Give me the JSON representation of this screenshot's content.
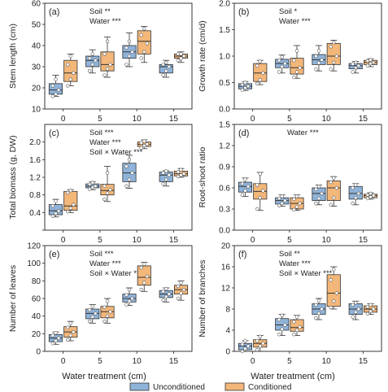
{
  "figure": {
    "xlabel": "Water treatment (cm)",
    "legend": [
      {
        "label": "Unconditioned",
        "color": "#8fb3d9"
      },
      {
        "label": "Conditioned",
        "color": "#f3b77a"
      }
    ]
  },
  "chart_data": [
    {
      "type": "box",
      "panel_label": "(a)",
      "ylabel": "Stem length (cm)",
      "ylim": [
        10,
        60
      ],
      "yticks": [
        10,
        20,
        30,
        40,
        50,
        60
      ],
      "categories": [
        "0",
        "5",
        "10",
        "15"
      ],
      "annotations": [
        "Soil **",
        "Water ***"
      ],
      "series": [
        {
          "name": "Unconditioned",
          "color": "#8fb3d9",
          "boxes": [
            {
              "min": 16,
              "q1": 17,
              "median": 19,
              "q3": 22,
              "max": 26,
              "points": [
                16,
                17,
                19,
                21,
                24
              ]
            },
            {
              "min": 27,
              "q1": 30,
              "median": 33,
              "q3": 35,
              "max": 38,
              "points": [
                28,
                31,
                33,
                34,
                36
              ]
            },
            {
              "min": 30,
              "q1": 34,
              "median": 37,
              "q3": 40,
              "max": 46,
              "points": [
                31,
                35,
                37,
                39,
                42
              ]
            },
            {
              "min": 25,
              "q1": 27,
              "median": 30,
              "q3": 31,
              "max": 33,
              "points": [
                26,
                28,
                30,
                31,
                32
              ]
            }
          ]
        },
        {
          "name": "Conditioned",
          "color": "#f3b77a",
          "boxes": [
            {
              "min": 21,
              "q1": 23,
              "median": 27,
              "q3": 33,
              "max": 36,
              "points": [
                21,
                24,
                27,
                31,
                35
              ]
            },
            {
              "min": 25,
              "q1": 28,
              "median": 31,
              "q3": 37,
              "max": 44,
              "points": [
                26,
                29,
                31,
                36,
                42
              ]
            },
            {
              "min": 32,
              "q1": 36,
              "median": 42,
              "q3": 47,
              "max": 49,
              "points": [
                34,
                37,
                41,
                45,
                48
              ]
            },
            {
              "min": 32,
              "q1": 34,
              "median": 35,
              "q3": 36,
              "max": 37,
              "points": [
                33,
                34,
                35,
                36,
                36
              ]
            }
          ]
        }
      ]
    },
    {
      "type": "box",
      "panel_label": "(b)",
      "ylabel": "Growth rate (cm/d)",
      "ylim": [
        0,
        2.0
      ],
      "yticks": [
        0.0,
        0.5,
        1.0,
        1.5,
        2.0
      ],
      "ytick_labels": [
        "0.0",
        "0.5",
        "1.0",
        "1.5",
        "2.0"
      ],
      "categories": [
        "0",
        "5",
        "10",
        "15"
      ],
      "annotations": [
        "Soil *",
        "Water ***"
      ],
      "series": [
        {
          "name": "Unconditioned",
          "color": "#8fb3d9",
          "boxes": [
            {
              "min": 0.35,
              "q1": 0.38,
              "median": 0.43,
              "q3": 0.48,
              "max": 0.52,
              "points": [
                0.36,
                0.4,
                0.43,
                0.46,
                0.5
              ]
            },
            {
              "min": 0.68,
              "q1": 0.78,
              "median": 0.86,
              "q3": 0.94,
              "max": 1.02,
              "points": [
                0.7,
                0.8,
                0.86,
                0.92,
                0.98
              ]
            },
            {
              "min": 0.72,
              "q1": 0.84,
              "median": 0.93,
              "q3": 1.03,
              "max": 1.2,
              "points": [
                0.75,
                0.87,
                0.93,
                1.0,
                1.1
              ]
            },
            {
              "min": 0.68,
              "q1": 0.76,
              "median": 0.82,
              "q3": 0.86,
              "max": 0.9,
              "points": [
                0.7,
                0.78,
                0.82,
                0.85,
                0.88
              ]
            }
          ]
        },
        {
          "name": "Conditioned",
          "color": "#f3b77a",
          "boxes": [
            {
              "min": 0.46,
              "q1": 0.52,
              "median": 0.68,
              "q3": 0.86,
              "max": 0.92,
              "points": [
                0.48,
                0.55,
                0.68,
                0.82,
                0.9
              ]
            },
            {
              "min": 0.58,
              "q1": 0.66,
              "median": 0.78,
              "q3": 0.96,
              "max": 1.2,
              "points": [
                0.6,
                0.7,
                0.78,
                0.92,
                1.1
              ]
            },
            {
              "min": 0.72,
              "q1": 0.84,
              "median": 1.0,
              "q3": 1.24,
              "max": 1.3,
              "points": [
                0.75,
                0.88,
                1.0,
                1.18,
                1.26
              ]
            },
            {
              "min": 0.8,
              "q1": 0.84,
              "median": 0.88,
              "q3": 0.92,
              "max": 0.95,
              "points": [
                0.82,
                0.86,
                0.88,
                0.91,
                0.93
              ]
            }
          ]
        }
      ]
    },
    {
      "type": "box",
      "panel_label": "(c)",
      "ylabel": "Total biomass (g, DW)",
      "ylim": [
        0,
        2.4
      ],
      "yticks": [
        0.0,
        0.4,
        0.8,
        1.2,
        1.6,
        2.0
      ],
      "ytick_labels": [
        "",
        "0.4",
        "0.8",
        "1.2",
        "1.6",
        "2.0"
      ],
      "categories": [
        "0",
        "5",
        "10",
        "15"
      ],
      "annotations": [
        "Soil ***",
        "Water ***",
        "Soil × Water ***"
      ],
      "series": [
        {
          "name": "Unconditioned",
          "color": "#8fb3d9",
          "boxes": [
            {
              "min": 0.3,
              "q1": 0.35,
              "median": 0.44,
              "q3": 0.58,
              "max": 0.7,
              "points": [
                0.32,
                0.38,
                0.44,
                0.55,
                0.66
              ]
            },
            {
              "min": 0.92,
              "q1": 0.96,
              "median": 1.0,
              "q3": 1.05,
              "max": 1.1,
              "points": [
                0.93,
                0.97,
                1.0,
                1.04,
                1.08
              ]
            },
            {
              "min": 0.95,
              "q1": 1.1,
              "median": 1.3,
              "q3": 1.52,
              "max": 1.7,
              "points": [
                1.0,
                1.15,
                1.3,
                1.45,
                1.6
              ]
            },
            {
              "min": 1.0,
              "q1": 1.1,
              "median": 1.25,
              "q3": 1.32,
              "max": 1.35,
              "points": [
                1.05,
                1.15,
                1.25,
                1.3,
                1.34
              ]
            }
          ]
        },
        {
          "name": "Conditioned",
          "color": "#f3b77a",
          "boxes": [
            {
              "min": 0.4,
              "q1": 0.45,
              "median": 0.55,
              "q3": 0.88,
              "max": 0.92,
              "points": [
                0.42,
                0.5,
                0.58,
                0.85,
                0.9
              ]
            },
            {
              "min": 0.65,
              "q1": 0.8,
              "median": 0.9,
              "q3": 1.04,
              "max": 1.45,
              "points": [
                0.7,
                0.84,
                0.92,
                1.0,
                1.3
              ]
            },
            {
              "min": 1.85,
              "q1": 1.9,
              "median": 1.95,
              "q3": 2.0,
              "max": 2.05,
              "points": [
                1.87,
                1.92,
                1.95,
                1.98,
                2.02
              ]
            },
            {
              "min": 1.2,
              "q1": 1.23,
              "median": 1.28,
              "q3": 1.34,
              "max": 1.4,
              "points": [
                1.22,
                1.25,
                1.28,
                1.32,
                1.37
              ]
            }
          ]
        }
      ]
    },
    {
      "type": "box",
      "panel_label": "(d)",
      "ylabel": "Root-shoot ratio",
      "ylim": [
        0,
        1.5
      ],
      "yticks": [
        0.0,
        0.3,
        0.6,
        0.9,
        1.2,
        1.5
      ],
      "ytick_labels": [
        "0.0",
        "0.3",
        "0.6",
        "0.9",
        "1.2",
        "1.5"
      ],
      "categories": [
        "0",
        "5",
        "10",
        "15"
      ],
      "annotations": [
        "Water ***"
      ],
      "series": [
        {
          "name": "Unconditioned",
          "color": "#8fb3d9",
          "boxes": [
            {
              "min": 0.48,
              "q1": 0.54,
              "median": 0.62,
              "q3": 0.68,
              "max": 0.74,
              "points": [
                0.5,
                0.56,
                0.62,
                0.66,
                0.72
              ]
            },
            {
              "min": 0.34,
              "q1": 0.37,
              "median": 0.42,
              "q3": 0.46,
              "max": 0.5,
              "points": [
                0.35,
                0.38,
                0.42,
                0.45,
                0.48
              ]
            },
            {
              "min": 0.36,
              "q1": 0.42,
              "median": 0.52,
              "q3": 0.6,
              "max": 0.64,
              "points": [
                0.38,
                0.45,
                0.52,
                0.58,
                0.62
              ]
            },
            {
              "min": 0.36,
              "q1": 0.44,
              "median": 0.52,
              "q3": 0.62,
              "max": 0.66,
              "points": [
                0.38,
                0.46,
                0.52,
                0.6,
                0.64
              ]
            }
          ]
        },
        {
          "name": "Conditioned",
          "color": "#f3b77a",
          "boxes": [
            {
              "min": 0.28,
              "q1": 0.44,
              "median": 0.55,
              "q3": 0.66,
              "max": 0.82,
              "points": [
                0.3,
                0.46,
                0.56,
                0.64,
                0.8
              ]
            },
            {
              "min": 0.28,
              "q1": 0.3,
              "median": 0.38,
              "q3": 0.46,
              "max": 0.5,
              "points": [
                0.29,
                0.33,
                0.38,
                0.44,
                0.48
              ]
            },
            {
              "min": 0.34,
              "q1": 0.42,
              "median": 0.6,
              "q3": 0.7,
              "max": 0.76,
              "points": [
                0.36,
                0.46,
                0.6,
                0.68,
                0.74
              ]
            },
            {
              "min": 0.44,
              "q1": 0.46,
              "median": 0.49,
              "q3": 0.51,
              "max": 0.53,
              "points": [
                0.45,
                0.47,
                0.49,
                0.5,
                0.52
              ]
            }
          ]
        }
      ]
    },
    {
      "type": "box",
      "panel_label": "(e)",
      "ylabel": "Number of leaves",
      "ylim": [
        0,
        120
      ],
      "yticks": [
        0,
        20,
        40,
        60,
        80,
        100,
        120
      ],
      "categories": [
        "0",
        "5",
        "10",
        "15"
      ],
      "annotations": [
        "Soil ***",
        "Water ***",
        "Soil × Water ***"
      ],
      "series": [
        {
          "name": "Unconditioned",
          "color": "#8fb3d9",
          "boxes": [
            {
              "min": 8,
              "q1": 11,
              "median": 15,
              "q3": 19,
              "max": 22,
              "points": [
                9,
                12,
                15,
                18,
                21
              ]
            },
            {
              "min": 32,
              "q1": 37,
              "median": 43,
              "q3": 48,
              "max": 53,
              "points": [
                34,
                39,
                43,
                47,
                51
              ]
            },
            {
              "min": 52,
              "q1": 56,
              "median": 60,
              "q3": 65,
              "max": 72,
              "points": [
                53,
                57,
                60,
                64,
                70
              ]
            },
            {
              "min": 56,
              "q1": 61,
              "median": 65,
              "q3": 69,
              "max": 72,
              "points": [
                58,
                62,
                65,
                68,
                71
              ]
            }
          ]
        },
        {
          "name": "Conditioned",
          "color": "#f3b77a",
          "boxes": [
            {
              "min": 12,
              "q1": 16,
              "median": 22,
              "q3": 28,
              "max": 34,
              "points": [
                13,
                18,
                22,
                27,
                32
              ]
            },
            {
              "min": 32,
              "q1": 38,
              "median": 45,
              "q3": 51,
              "max": 60,
              "points": [
                34,
                40,
                45,
                50,
                57
              ]
            },
            {
              "min": 68,
              "q1": 75,
              "median": 84,
              "q3": 97,
              "max": 101,
              "points": [
                70,
                78,
                85,
                95,
                99
              ]
            },
            {
              "min": 58,
              "q1": 65,
              "median": 70,
              "q3": 75,
              "max": 80,
              "points": [
                60,
                66,
                70,
                74,
                78
              ]
            }
          ]
        }
      ]
    },
    {
      "type": "box",
      "panel_label": "(f)",
      "ylabel": "Number of branches",
      "ylim": [
        0,
        20
      ],
      "yticks": [
        0,
        4,
        8,
        12,
        16,
        20
      ],
      "categories": [
        "0",
        "5",
        "10",
        "15"
      ],
      "annotations": [
        "Soil **",
        "Water ***",
        "Soil × Water ***"
      ],
      "series": [
        {
          "name": "Unconditioned",
          "color": "#8fb3d9",
          "boxes": [
            {
              "min": 0,
              "q1": 0.3,
              "median": 1,
              "q3": 1.5,
              "max": 2,
              "points": [
                0,
                0.5,
                1,
                1.3,
                2
              ]
            },
            {
              "min": 3,
              "q1": 4,
              "median": 5,
              "q3": 6.2,
              "max": 7,
              "points": [
                3.2,
                4.2,
                5,
                6,
                6.8
              ]
            },
            {
              "min": 6,
              "q1": 7,
              "median": 8,
              "q3": 9,
              "max": 10,
              "points": [
                6.3,
                7.2,
                8,
                8.8,
                9.6
              ]
            },
            {
              "min": 6,
              "q1": 7,
              "median": 8,
              "q3": 9,
              "max": 9.5,
              "points": [
                6.5,
                7.4,
                8,
                8.8,
                9.2
              ]
            }
          ]
        },
        {
          "name": "Conditioned",
          "color": "#f3b77a",
          "boxes": [
            {
              "min": 0,
              "q1": 0.8,
              "median": 1.5,
              "q3": 2.2,
              "max": 3,
              "points": [
                0.3,
                1,
                1.5,
                2,
                2.8
              ]
            },
            {
              "min": 3,
              "q1": 3.8,
              "median": 4.5,
              "q3": 6,
              "max": 6.8,
              "points": [
                3.2,
                4,
                4.6,
                5.6,
                6.5
              ]
            },
            {
              "min": 8,
              "q1": 8.5,
              "median": 11,
              "q3": 14.5,
              "max": 16,
              "points": [
                8.3,
                9.5,
                11,
                13.5,
                15.5
              ]
            },
            {
              "min": 7,
              "q1": 7.4,
              "median": 8,
              "q3": 8.6,
              "max": 9,
              "points": [
                7.1,
                7.6,
                8,
                8.4,
                8.8
              ]
            }
          ]
        }
      ]
    }
  ]
}
